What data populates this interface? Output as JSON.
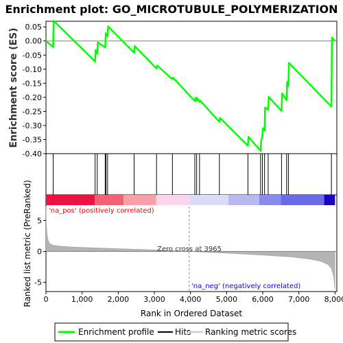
{
  "title": "Enrichment plot: GO_MICROTUBULE_POLYMERIZATION",
  "chart_data": [
    {
      "type": "line",
      "panel": "enrichment",
      "ylabel": "Enrichment score (ES)",
      "ylim": [
        -0.4,
        0.07
      ],
      "xlim": [
        0,
        8050
      ],
      "yticks": [
        0.05,
        0.0,
        -0.05,
        -0.1,
        -0.15,
        -0.2,
        -0.25,
        -0.3,
        -0.35,
        -0.4
      ],
      "ytick_labels": [
        "0.05",
        "0.00",
        "-0.05",
        "-0.10",
        "-0.15",
        "-0.20",
        "-0.25",
        "-0.30",
        "-0.35",
        "-0.40"
      ],
      "zero_line": true,
      "color": "#00ff00",
      "x": [
        0,
        200,
        210,
        1360,
        1375,
        1420,
        1435,
        1640,
        1655,
        1705,
        1720,
        2440,
        2455,
        3060,
        3075,
        3500,
        3515,
        4120,
        4135,
        4170,
        4185,
        4250,
        4265,
        4800,
        4815,
        5590,
        5605,
        5940,
        5955,
        5990,
        6005,
        6050,
        6065,
        6150,
        6165,
        6520,
        6535,
        6660,
        6675,
        6710,
        6725,
        7900,
        7915,
        8000
      ],
      "y": [
        0.0,
        -0.022,
        0.072,
        -0.073,
        -0.032,
        -0.045,
        -0.005,
        -0.023,
        0.028,
        0.016,
        0.052,
        -0.042,
        -0.018,
        -0.098,
        -0.087,
        -0.136,
        -0.13,
        -0.213,
        -0.202,
        -0.213,
        -0.202,
        -0.216,
        -0.211,
        -0.287,
        -0.273,
        -0.372,
        -0.34,
        -0.39,
        -0.355,
        -0.336,
        -0.31,
        -0.318,
        -0.236,
        -0.244,
        -0.198,
        -0.248,
        -0.186,
        -0.21,
        -0.145,
        -0.16,
        -0.078,
        -0.233,
        0.012,
        0.0
      ]
    },
    {
      "type": "scatter",
      "panel": "hits",
      "x": [
        200,
        1360,
        1420,
        1640,
        1660,
        1705,
        2440,
        3060,
        3500,
        4120,
        4170,
        4250,
        4800,
        5590,
        5940,
        5990,
        6050,
        6150,
        6520,
        6660,
        6710,
        7900
      ]
    },
    {
      "type": "heatmap",
      "panel": "ranked-color-bar",
      "segments": [
        {
          "start": 0,
          "end": 1350,
          "color": "#ee1144"
        },
        {
          "start": 1350,
          "end": 2150,
          "color": "#f26074"
        },
        {
          "start": 2150,
          "end": 3050,
          "color": "#f7a0a9"
        },
        {
          "start": 3050,
          "end": 3965,
          "color": "#fbd6ea"
        },
        {
          "start": 3965,
          "end": 5050,
          "color": "#dcdcf8"
        },
        {
          "start": 5050,
          "end": 5900,
          "color": "#b9b9f2"
        },
        {
          "start": 5900,
          "end": 6500,
          "color": "#8a8aec"
        },
        {
          "start": 6500,
          "end": 7700,
          "color": "#6a6ae6"
        },
        {
          "start": 7700,
          "end": 8000,
          "color": "#1c00c0"
        }
      ]
    },
    {
      "type": "area",
      "panel": "ranked-list-metric",
      "xlabel": "Rank in Ordered Dataset",
      "ylabel": "Ranked list metric (PreRanked)",
      "ylim": [
        -6.5,
        7.5
      ],
      "xlim": [
        0,
        8050
      ],
      "yticks": [
        5,
        0,
        -5
      ],
      "ytick_labels": [
        "5",
        "0",
        "-5"
      ],
      "xticks": [
        0,
        1000,
        2000,
        3000,
        4000,
        5000,
        6000,
        7000,
        8000
      ],
      "xtick_labels": [
        "0",
        "1,000",
        "2,000",
        "3,000",
        "4,000",
        "5,000",
        "6,000",
        "7,000",
        "8,000"
      ],
      "x": [
        0,
        10,
        30,
        60,
        100,
        200,
        400,
        800,
        1500,
        2500,
        3200,
        3965,
        4500,
        5200,
        6000,
        6800,
        7300,
        7600,
        7800,
        7900,
        7960,
        8000
      ],
      "y": [
        7.3,
        4.5,
        2.8,
        1.8,
        1.3,
        1.0,
        0.85,
        0.7,
        0.55,
        0.35,
        0.2,
        0.0,
        -0.15,
        -0.35,
        -0.6,
        -0.9,
        -1.25,
        -1.6,
        -2.1,
        -2.8,
        -4.0,
        -6.2
      ],
      "fill": "#b4b4b4",
      "zero_cross": 3965,
      "annotations": {
        "zero_cross": "Zero cross at 3965",
        "pos": "'na_pos' (positively correlated)",
        "neg": "'na_neg' (negatively correlated)"
      },
      "pos_color": "#ff0000",
      "neg_color": "#0000ff"
    }
  ],
  "legend": {
    "items": [
      {
        "label": "Enrichment profile",
        "color": "#00ff00"
      },
      {
        "label": "Hits",
        "color": "#000000"
      },
      {
        "label": "Ranking metric scores",
        "color": "#d3d3d3"
      }
    ]
  }
}
